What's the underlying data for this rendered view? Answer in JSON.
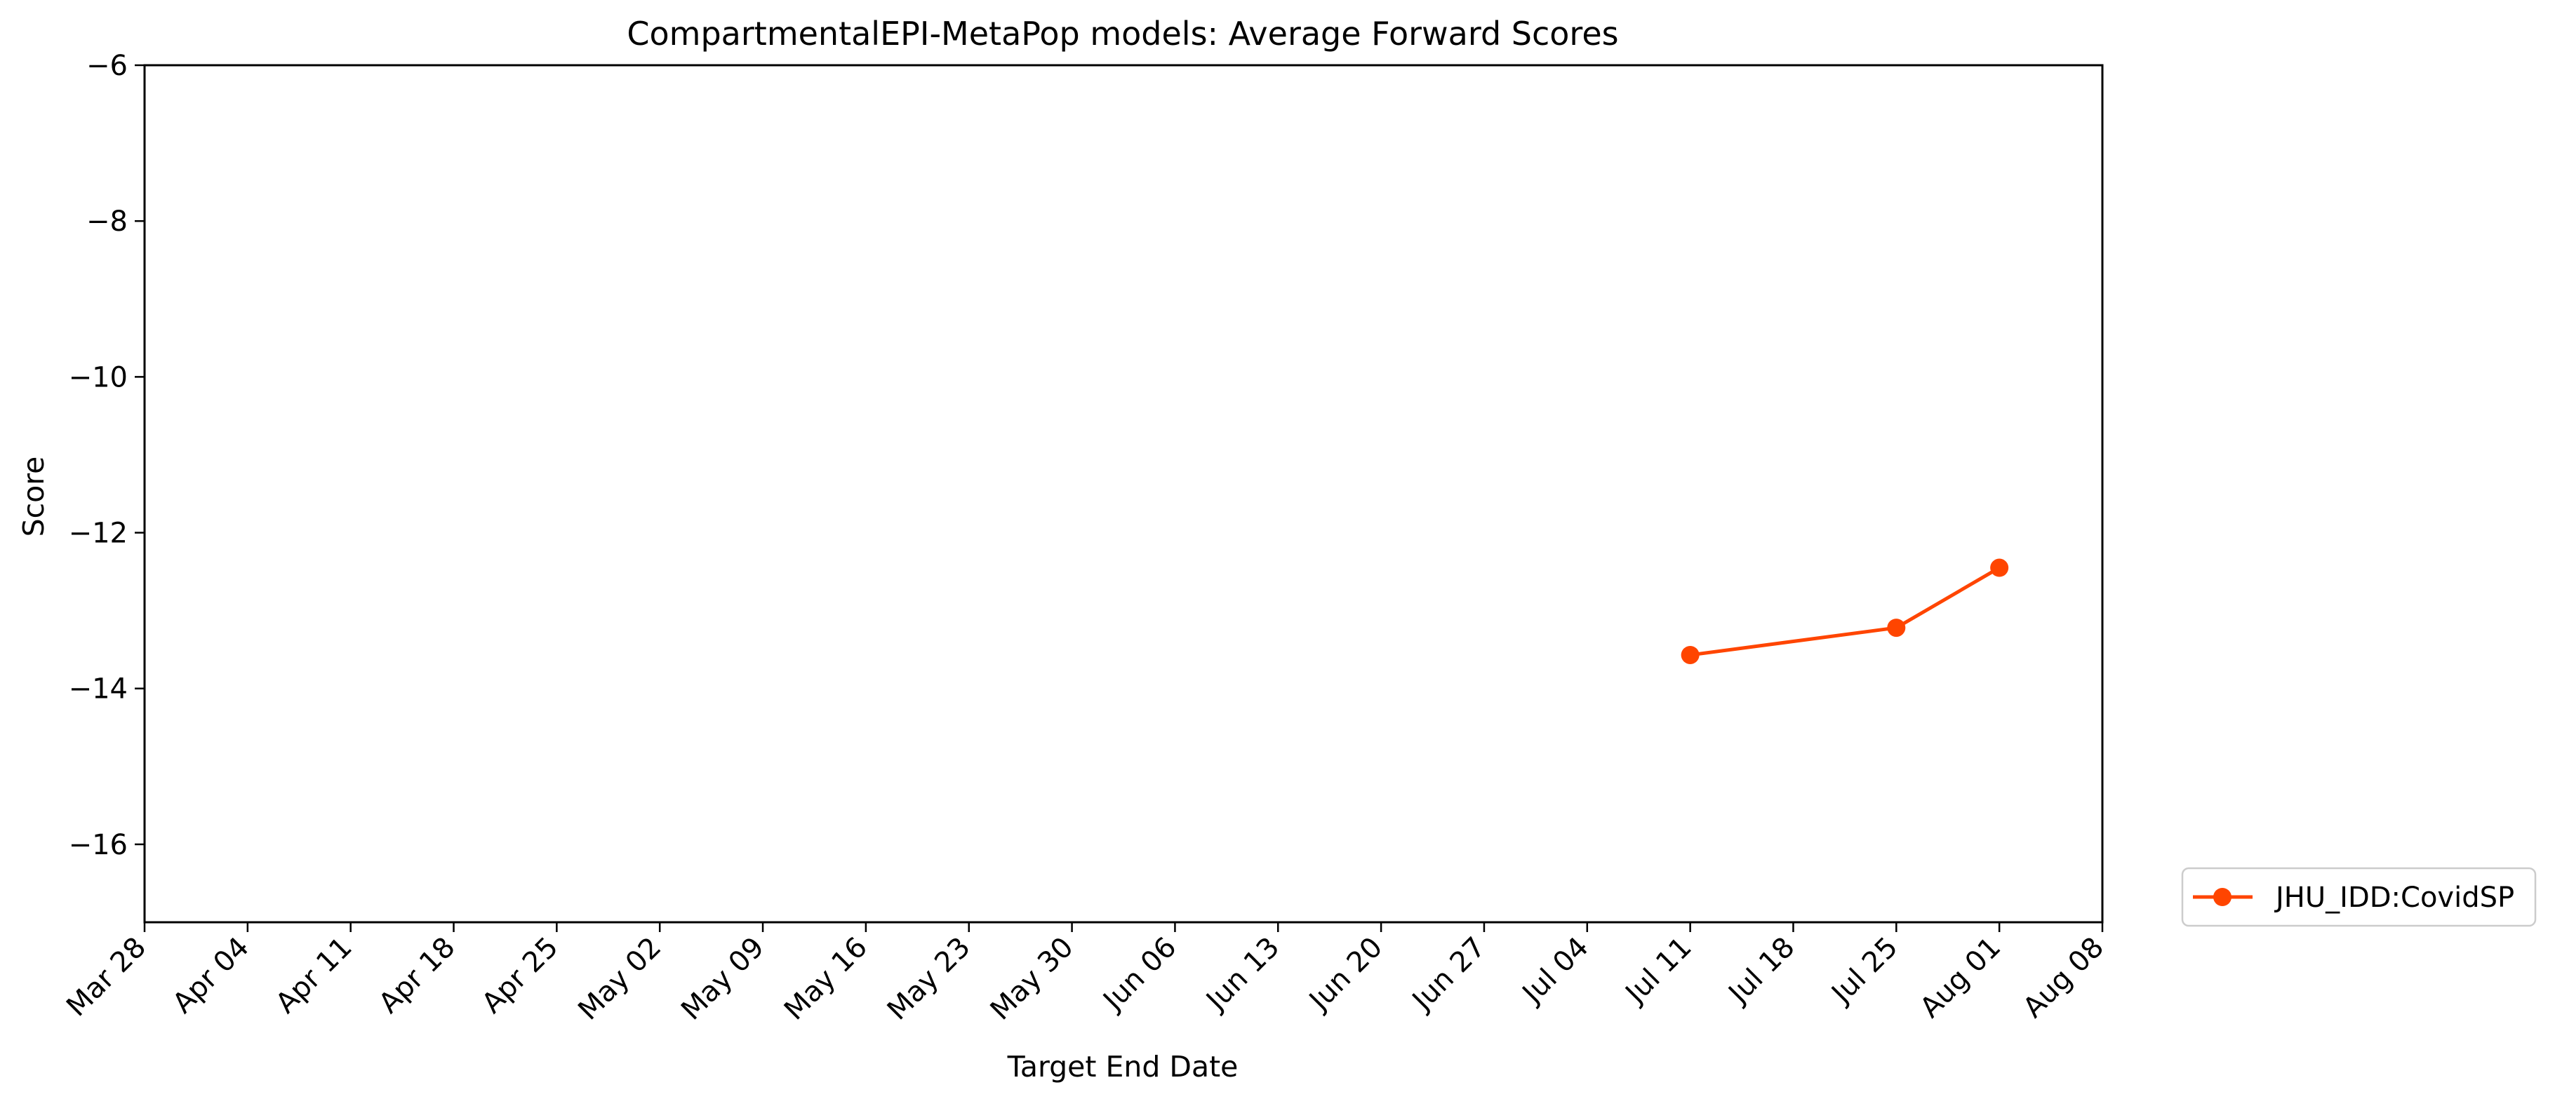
{
  "chart_data": {
    "type": "line",
    "title": "CompartmentalEPI-MetaPop models: Average Forward Scores",
    "xlabel": "Target End Date",
    "ylabel": "Score",
    "x_tick_labels": [
      "Mar 28",
      "Apr 04",
      "Apr 11",
      "Apr 18",
      "Apr 25",
      "May 02",
      "May 09",
      "May 16",
      "May 23",
      "May 30",
      "Jun 06",
      "Jun 13",
      "Jun 20",
      "Jun 27",
      "Jul 04",
      "Jul 11",
      "Jul 18",
      "Jul 25",
      "Aug 01",
      "Aug 08"
    ],
    "x_tick_dates": [
      "03-28",
      "04-04",
      "04-11",
      "04-18",
      "04-25",
      "05-02",
      "05-09",
      "05-16",
      "05-23",
      "05-30",
      "06-06",
      "06-13",
      "06-20",
      "06-27",
      "07-04",
      "07-11",
      "07-18",
      "07-25",
      "08-01",
      "08-08"
    ],
    "xlim": [
      "03-28",
      "08-08"
    ],
    "ylim": [
      -17,
      -6
    ],
    "y_ticks": [
      -6,
      -8,
      -10,
      -12,
      -14,
      -16
    ],
    "y_tick_labels": [
      "−6",
      "−8",
      "−10",
      "−12",
      "−14",
      "−16"
    ],
    "grid": false,
    "legend_placement": "lower-right-outside",
    "series": [
      {
        "name": "JHU_IDD:CovidSP",
        "color": "#ff4500",
        "marker": "circle",
        "x": [
          "07-11",
          "07-25",
          "08-01"
        ],
        "y": [
          -13.57,
          -13.22,
          -12.45
        ]
      }
    ]
  }
}
